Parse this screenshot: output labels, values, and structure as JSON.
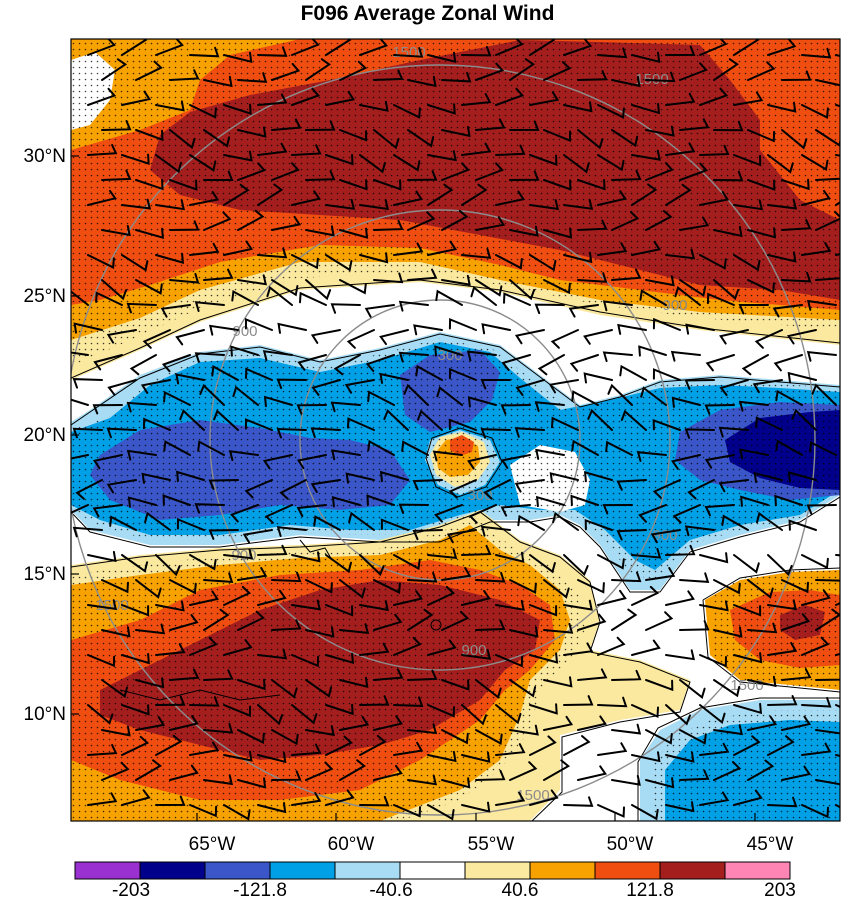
{
  "title": "F096 Average Zonal Wind",
  "lat_labels": [
    "30°N",
    "25°N",
    "20°N",
    "15°N",
    "10°N"
  ],
  "lon_labels": [
    "65°W",
    "60°W",
    "55°W",
    "50°W",
    "45°W"
  ],
  "colorbar": {
    "labels": [
      "-203",
      "-121.8",
      "-40.6",
      "40.6",
      "121.8",
      "203"
    ],
    "colors": [
      "#9b30d0",
      "#00008b",
      "#3a56c8",
      "#00a0e6",
      "#a8dcf4",
      "#ffffff",
      "#fbe9a0",
      "#f8a200",
      "#f04e10",
      "#a51e1e",
      "#ff85b5"
    ]
  },
  "height_contours": {
    "labels": [
      "300",
      "900",
      "1500",
      "900",
      "300",
      "900",
      "1500",
      "900",
      "1500",
      "900",
      "1500",
      "1500"
    ],
    "unlabeled_values": [
      900,
      1500,
      1500
    ]
  }
}
